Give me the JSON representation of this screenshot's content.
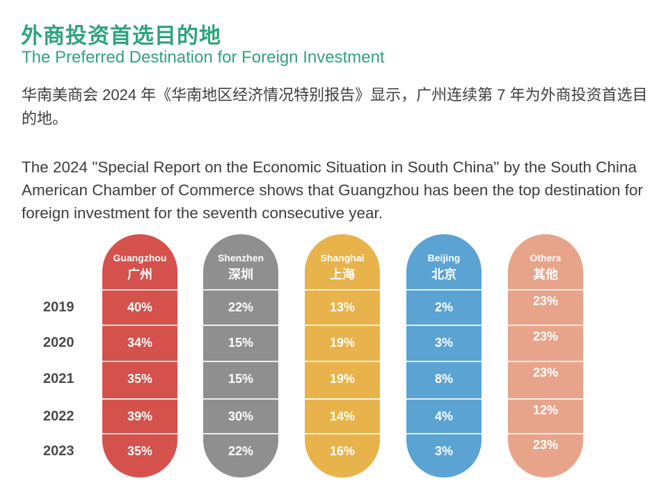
{
  "header": {
    "title_zh": "外商投资首选目的地",
    "title_en": "The Preferred Destination for Foreign Investment"
  },
  "description": {
    "zh": "华南美商会 2024 年《华南地区经济情况特别报告》显示，广州连续第 7 年为外商投资首选目的地。",
    "en": "The 2024 \"Special Report on the Economic Situation in South China\" by the South China American Chamber of Commerce shows that Guangzhou has been the top destination for foreign investment for the seventh consecutive year."
  },
  "colors": {
    "title": "#2fa37e",
    "guangzhou": "#d5514c",
    "shenzhen": "#8f8f8f",
    "shanghai": "#e8b34a",
    "beijing": "#5aa3d3",
    "others": "#e8a48a"
  },
  "chart_data": {
    "type": "table",
    "rows": [
      "2019",
      "2020",
      "2021",
      "2022",
      "2023"
    ],
    "series": [
      {
        "name": "Guangzhou",
        "name_zh": "广州",
        "color": "#d5514c",
        "values": [
          "40%",
          "34%",
          "35%",
          "39%",
          "35%"
        ]
      },
      {
        "name": "Shenzhen",
        "name_zh": "深圳",
        "color": "#8f8f8f",
        "values": [
          "22%",
          "15%",
          "15%",
          "30%",
          "22%"
        ]
      },
      {
        "name": "Shanghai",
        "name_zh": "上海",
        "color": "#e8b34a",
        "values": [
          "13%",
          "19%",
          "19%",
          "14%",
          "16%"
        ]
      },
      {
        "name": "Beijing",
        "name_zh": "北京",
        "color": "#5aa3d3",
        "values": [
          "2%",
          "3%",
          "8%",
          "4%",
          "3%"
        ]
      },
      {
        "name": "Others",
        "name_zh": "其他",
        "color": "#e8a48a",
        "values": [
          "23%",
          "23%",
          "23%",
          "12%",
          "23%"
        ]
      }
    ]
  }
}
